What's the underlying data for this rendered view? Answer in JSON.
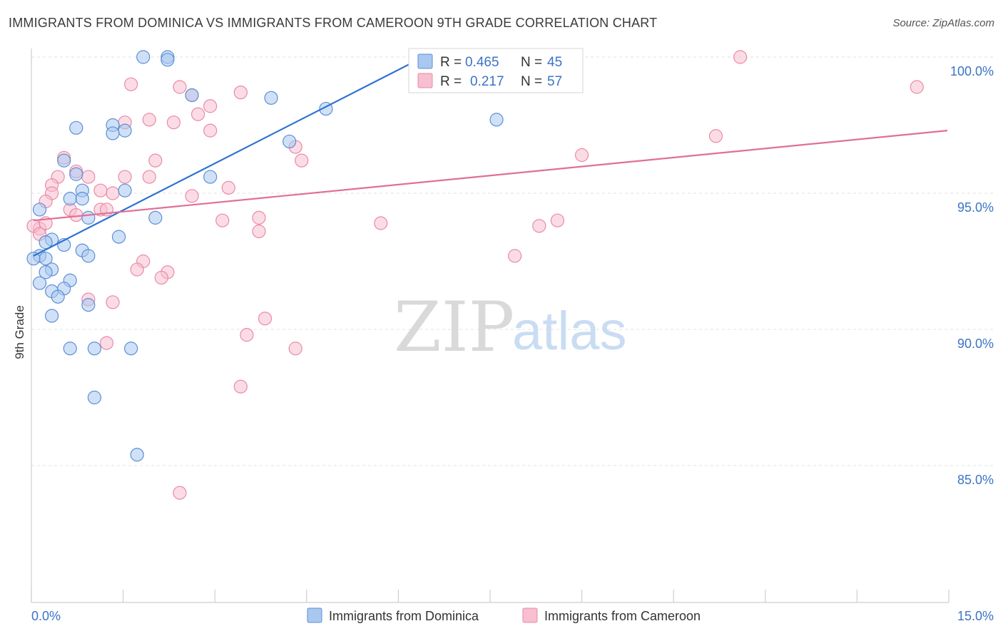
{
  "title": "IMMIGRANTS FROM DOMINICA VS IMMIGRANTS FROM CAMEROON 9TH GRADE CORRELATION CHART",
  "source": "Source: ZipAtlas.com",
  "watermark": {
    "zip": "ZIP",
    "atlas": "atlas"
  },
  "legend": {
    "r_label": "R =",
    "n_label": "N =",
    "series": [
      {
        "r": "0.465",
        "n": "45"
      },
      {
        "r": "0.217",
        "n": "57"
      }
    ]
  },
  "colors": {
    "blue_fill": "#a9c8f0",
    "blue_stroke": "#5b8fd6",
    "blue_line": "#2f73d0",
    "pink_fill": "#f7bfd0",
    "pink_stroke": "#e98aa8",
    "pink_line": "#e06f97",
    "axis_text": "#3b73c6"
  },
  "chart_data": {
    "type": "scatter",
    "title": "IMMIGRANTS FROM DOMINICA VS IMMIGRANTS FROM CAMEROON 9TH GRADE CORRELATION CHART",
    "xlabel": "",
    "ylabel": "9th Grade",
    "xlim": [
      0,
      15
    ],
    "ylim": [
      80.5,
      100.6
    ],
    "x_tick_labels": [
      "0.0%",
      "15.0%"
    ],
    "y_ticks": [
      85,
      90,
      95,
      100
    ],
    "y_tick_labels": [
      "85.0%",
      "90.0%",
      "95.0%",
      "100.0%"
    ],
    "grid": true,
    "series": [
      {
        "name": "Immigrants from Dominica",
        "color": "blue",
        "r": 0.465,
        "n": 45,
        "trend": {
          "x": [
            0.0,
            6.4
          ],
          "y": [
            92.7,
            100.0
          ]
        },
        "points": [
          [
            1.8,
            100.0
          ],
          [
            2.2,
            100.0
          ],
          [
            2.2,
            99.9
          ],
          [
            2.6,
            98.6
          ],
          [
            3.9,
            98.5
          ],
          [
            4.8,
            98.1
          ],
          [
            7.6,
            97.7
          ],
          [
            0.7,
            97.4
          ],
          [
            1.3,
            97.5
          ],
          [
            1.3,
            97.2
          ],
          [
            1.5,
            97.3
          ],
          [
            4.2,
            96.9
          ],
          [
            0.5,
            96.2
          ],
          [
            0.7,
            95.7
          ],
          [
            2.9,
            95.6
          ],
          [
            0.8,
            95.1
          ],
          [
            1.5,
            95.1
          ],
          [
            0.6,
            94.8
          ],
          [
            0.8,
            94.8
          ],
          [
            0.1,
            94.4
          ],
          [
            0.9,
            94.1
          ],
          [
            2.0,
            94.1
          ],
          [
            1.4,
            93.4
          ],
          [
            0.3,
            93.3
          ],
          [
            0.5,
            93.1
          ],
          [
            0.2,
            93.2
          ],
          [
            0.8,
            92.9
          ],
          [
            0.1,
            92.7
          ],
          [
            0.9,
            92.7
          ],
          [
            0.2,
            92.6
          ],
          [
            0.3,
            92.2
          ],
          [
            0.2,
            92.1
          ],
          [
            0.1,
            91.7
          ],
          [
            0.6,
            91.8
          ],
          [
            0.5,
            91.5
          ],
          [
            0.3,
            91.4
          ],
          [
            0.4,
            91.2
          ],
          [
            0.9,
            90.9
          ],
          [
            0.3,
            90.5
          ],
          [
            0.6,
            89.3
          ],
          [
            1.0,
            89.3
          ],
          [
            1.6,
            89.3
          ],
          [
            1.0,
            87.5
          ],
          [
            1.7,
            85.4
          ],
          [
            0.0,
            92.6
          ]
        ]
      },
      {
        "name": "Immigrants from Cameroon",
        "color": "pink",
        "r": 0.217,
        "n": 57,
        "trend": {
          "x": [
            0.0,
            15.0
          ],
          "y": [
            94.0,
            97.3
          ]
        },
        "points": [
          [
            11.6,
            100.0
          ],
          [
            14.5,
            98.9
          ],
          [
            1.6,
            99.0
          ],
          [
            2.4,
            98.9
          ],
          [
            3.4,
            98.7
          ],
          [
            2.6,
            98.6
          ],
          [
            2.9,
            98.2
          ],
          [
            2.7,
            97.9
          ],
          [
            1.9,
            97.7
          ],
          [
            2.3,
            97.6
          ],
          [
            1.5,
            97.6
          ],
          [
            2.9,
            97.3
          ],
          [
            11.2,
            97.1
          ],
          [
            4.3,
            96.7
          ],
          [
            9.0,
            96.4
          ],
          [
            0.5,
            96.3
          ],
          [
            2.0,
            96.2
          ],
          [
            4.4,
            96.2
          ],
          [
            0.7,
            95.8
          ],
          [
            0.9,
            95.6
          ],
          [
            1.5,
            95.6
          ],
          [
            1.9,
            95.6
          ],
          [
            0.4,
            95.6
          ],
          [
            0.3,
            95.3
          ],
          [
            3.2,
            95.2
          ],
          [
            1.1,
            95.1
          ],
          [
            1.3,
            95.0
          ],
          [
            0.3,
            95.0
          ],
          [
            2.6,
            94.9
          ],
          [
            0.2,
            94.7
          ],
          [
            0.6,
            94.4
          ],
          [
            1.1,
            94.4
          ],
          [
            1.2,
            94.4
          ],
          [
            0.7,
            94.2
          ],
          [
            3.7,
            94.1
          ],
          [
            3.1,
            94.0
          ],
          [
            5.7,
            93.9
          ],
          [
            8.6,
            94.0
          ],
          [
            8.3,
            93.8
          ],
          [
            0.1,
            93.7
          ],
          [
            0.0,
            93.8
          ],
          [
            3.7,
            93.6
          ],
          [
            7.9,
            92.7
          ],
          [
            1.8,
            92.5
          ],
          [
            1.7,
            92.2
          ],
          [
            2.2,
            92.1
          ],
          [
            2.1,
            91.9
          ],
          [
            0.9,
            91.1
          ],
          [
            1.3,
            91.0
          ],
          [
            3.8,
            90.4
          ],
          [
            3.5,
            89.8
          ],
          [
            1.2,
            89.5
          ],
          [
            4.3,
            89.3
          ],
          [
            3.4,
            87.9
          ],
          [
            2.4,
            84.0
          ],
          [
            0.1,
            93.5
          ],
          [
            0.2,
            93.9
          ]
        ]
      }
    ]
  }
}
